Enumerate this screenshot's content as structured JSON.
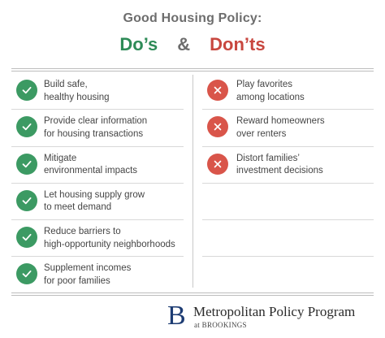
{
  "header": {
    "title": "Good Housing Policy:",
    "dos": "Do’s",
    "ampersand": "&",
    "donts": "Don’ts"
  },
  "colors": {
    "do_green": "#3c9a63",
    "dont_red": "#d9554a",
    "logo_blue": "#1d3c73"
  },
  "dos": [
    {
      "icon": "check-icon",
      "line1": "Build safe,",
      "line2": "healthy housing"
    },
    {
      "icon": "check-icon",
      "line1": "Provide clear information",
      "line2": "for housing transactions"
    },
    {
      "icon": "check-icon",
      "line1": "Mitigate",
      "line2": "environmental impacts"
    },
    {
      "icon": "check-icon",
      "line1": "Let housing supply grow",
      "line2": "to meet demand"
    },
    {
      "icon": "check-icon",
      "line1": "Reduce barriers to",
      "line2": "high-opportunity neighborhoods"
    },
    {
      "icon": "check-icon",
      "line1": "Supplement incomes",
      "line2": "for poor families"
    }
  ],
  "donts": [
    {
      "icon": "x-icon",
      "line1": "Play favorites",
      "line2": "among locations"
    },
    {
      "icon": "x-icon",
      "line1": "Reward homeowners",
      "line2": "over renters"
    },
    {
      "icon": "x-icon",
      "line1": "Distort families’",
      "line2": "investment decisions"
    }
  ],
  "footer": {
    "logo_letter": "B",
    "program": "Metropolitan Policy Program",
    "affiliation": "at BROOKINGS"
  }
}
